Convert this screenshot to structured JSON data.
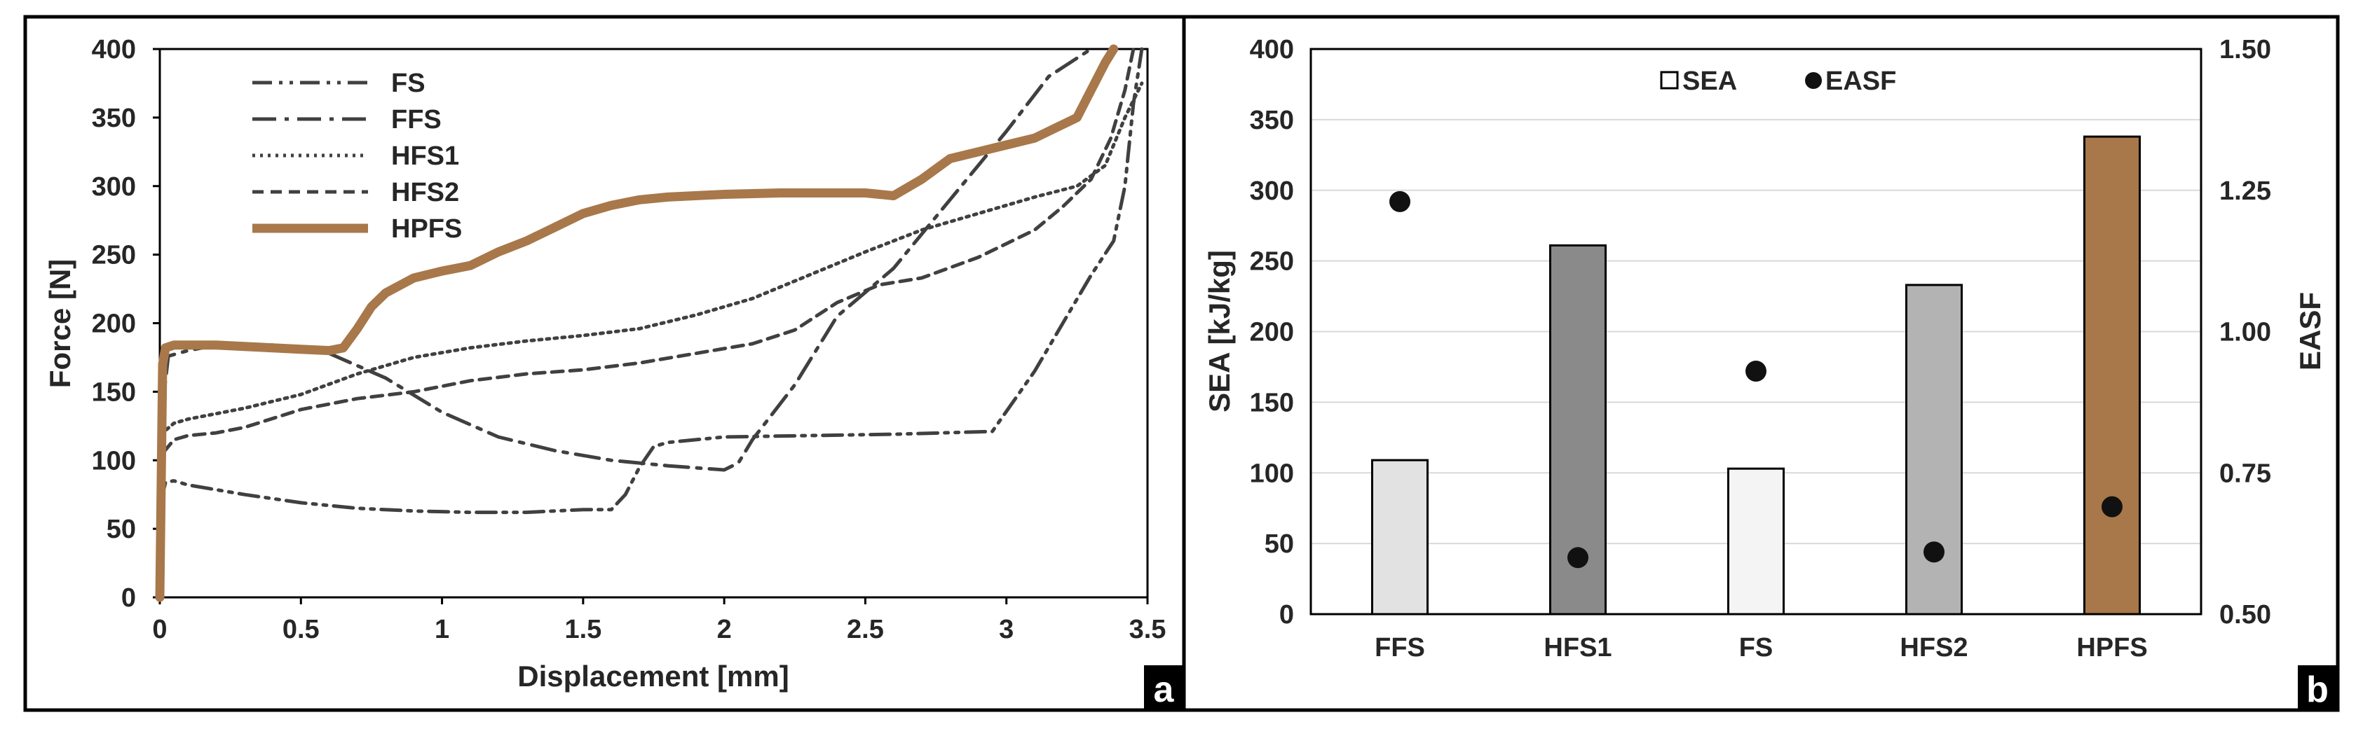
{
  "chart_data": [
    {
      "panel": "a",
      "type": "line",
      "xlabel": "Displacement [mm]",
      "ylabel": "Force [N]",
      "xlim": [
        0,
        3.5
      ],
      "ylim": [
        0,
        400
      ],
      "xticks": [
        "0",
        "0.5",
        "1",
        "1.5",
        "2",
        "2.5",
        "3",
        "3.5"
      ],
      "yticks": [
        "0",
        "50",
        "100",
        "150",
        "200",
        "250",
        "300",
        "350",
        "400"
      ],
      "grid": false,
      "legend_position": "top-left",
      "series": [
        {
          "name": "FS",
          "color": "#404040",
          "dash": "dash-dot-dot",
          "x": [
            0,
            0.01,
            0.02,
            0.05,
            0.1,
            0.3,
            0.5,
            0.7,
            0.9,
            1.1,
            1.3,
            1.5,
            1.6,
            1.65,
            1.7,
            1.75,
            1.8,
            2.0,
            2.3,
            2.6,
            2.95,
            3.1,
            3.2,
            3.3,
            3.38,
            3.42,
            3.45,
            3.48
          ],
          "y": [
            0,
            75,
            84,
            85,
            82,
            75,
            69,
            65,
            63,
            62,
            62,
            64,
            64,
            75,
            95,
            110,
            113,
            117,
            118,
            119,
            121,
            165,
            200,
            235,
            260,
            300,
            360,
            400
          ]
        },
        {
          "name": "FFS",
          "color": "#404040",
          "dash": "long-dash-dot",
          "x": [
            0,
            0.01,
            0.03,
            0.1,
            0.2,
            0.4,
            0.6,
            0.8,
            1.0,
            1.2,
            1.4,
            1.6,
            1.8,
            2.0,
            2.05,
            2.1,
            2.25,
            2.4,
            2.6,
            2.8,
            3.0,
            3.15,
            3.3
          ],
          "y": [
            0,
            140,
            176,
            180,
            184,
            184,
            178,
            160,
            135,
            117,
            107,
            100,
            96,
            93,
            98,
            115,
            155,
            205,
            240,
            290,
            340,
            380,
            400
          ]
        },
        {
          "name": "HFS1",
          "color": "#404040",
          "dash": "dotted",
          "x": [
            0,
            0.01,
            0.05,
            0.1,
            0.2,
            0.3,
            0.5,
            0.7,
            0.9,
            1.1,
            1.3,
            1.5,
            1.7,
            1.9,
            2.1,
            2.3,
            2.5,
            2.7,
            2.9,
            3.1,
            3.25,
            3.35,
            3.42,
            3.48
          ],
          "y": [
            0,
            120,
            127,
            130,
            134,
            138,
            148,
            163,
            175,
            182,
            187,
            191,
            196,
            206,
            218,
            235,
            252,
            268,
            280,
            292,
            300,
            315,
            350,
            375
          ]
        },
        {
          "name": "HFS2",
          "color": "#404040",
          "dash": "dashed",
          "x": [
            0,
            0.01,
            0.05,
            0.1,
            0.2,
            0.3,
            0.5,
            0.7,
            0.9,
            1.1,
            1.3,
            1.5,
            1.7,
            1.9,
            2.1,
            2.25,
            2.4,
            2.55,
            2.7,
            2.9,
            3.0,
            3.1,
            3.2,
            3.3,
            3.37,
            3.42,
            3.45
          ],
          "y": [
            0,
            105,
            115,
            118,
            120,
            124,
            137,
            145,
            150,
            158,
            163,
            166,
            171,
            178,
            185,
            195,
            215,
            228,
            233,
            248,
            258,
            268,
            285,
            305,
            335,
            370,
            400
          ]
        },
        {
          "name": "HPFS",
          "color": "#a8784a",
          "dash": "solid-thick",
          "x": [
            0,
            0.01,
            0.02,
            0.05,
            0.1,
            0.2,
            0.3,
            0.4,
            0.5,
            0.6,
            0.65,
            0.7,
            0.75,
            0.8,
            0.9,
            1.0,
            1.1,
            1.2,
            1.3,
            1.4,
            1.5,
            1.6,
            1.7,
            1.8,
            2.0,
            2.2,
            2.4,
            2.5,
            2.6,
            2.7,
            2.8,
            2.9,
            3.0,
            3.1,
            3.2,
            3.25,
            3.3,
            3.35,
            3.38
          ],
          "y": [
            0,
            170,
            182,
            184,
            184,
            184,
            183,
            182,
            181,
            180,
            182,
            196,
            212,
            222,
            233,
            238,
            242,
            252,
            260,
            270,
            280,
            286,
            290,
            292,
            294,
            295,
            295,
            295,
            293,
            305,
            320,
            325,
            330,
            335,
            345,
            350,
            370,
            390,
            400
          ]
        }
      ]
    },
    {
      "panel": "b",
      "type": "bar",
      "categories": [
        "FFS",
        "HFS1",
        "FS",
        "HFS2",
        "HPFS"
      ],
      "ylabel": "SEA [kJ/kg]",
      "y2label": "EASF",
      "ylim": [
        0,
        400
      ],
      "y2lim": [
        0.5,
        1.5
      ],
      "yticks": [
        "0",
        "50",
        "100",
        "150",
        "200",
        "250",
        "300",
        "350",
        "400"
      ],
      "y2ticks": [
        "0.50",
        "0.75",
        "1.00",
        "1.25",
        "1.50"
      ],
      "grid": true,
      "legend_position": "top-center",
      "series": [
        {
          "name": "SEA",
          "axis": "left",
          "kind": "bar",
          "values": [
            109,
            261,
            103,
            233,
            338
          ],
          "colors": [
            "#e2e2e2",
            "#8a8a8a",
            "#f4f4f4",
            "#b3b3b3",
            "#a8784a"
          ]
        },
        {
          "name": "EASF",
          "axis": "right",
          "kind": "marker",
          "color": "#111111",
          "values": [
            1.23,
            0.6,
            0.93,
            0.61,
            0.69
          ]
        }
      ]
    }
  ],
  "panel_labels": [
    "a",
    "b"
  ]
}
